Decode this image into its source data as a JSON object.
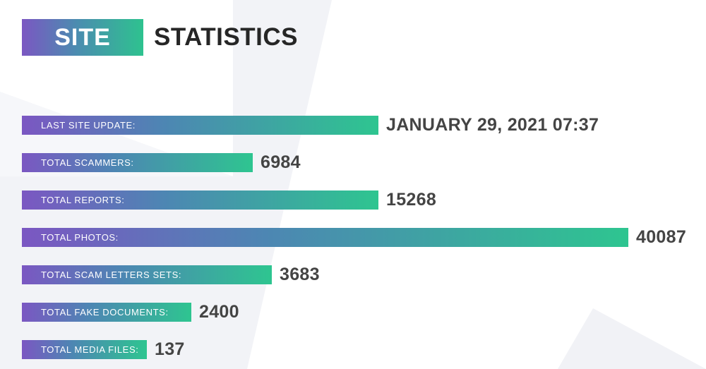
{
  "header": {
    "highlight": "SITE",
    "rest": "STATISTICS"
  },
  "stats": [
    {
      "label": "LAST SITE UPDATE:",
      "value": "JANUARY 29, 2021 07:37"
    },
    {
      "label": "TOTAL SCAMMERS:",
      "value": "6984"
    },
    {
      "label": "TOTAL REPORTS:",
      "value": "15268"
    },
    {
      "label": "TOTAL PHOTOS:",
      "value": "40087"
    },
    {
      "label": "TOTAL SCAM LETTERS SETS:",
      "value": "3683"
    },
    {
      "label": "TOTAL FAKE DOCUMENTS:",
      "value": "2400"
    },
    {
      "label": "TOTAL MEDIA FILES:",
      "value": "137"
    }
  ],
  "colors": {
    "gradient_start": "#7b57c2",
    "gradient_end": "#2ec590",
    "value_text": "#444444",
    "title_text": "#262626"
  }
}
